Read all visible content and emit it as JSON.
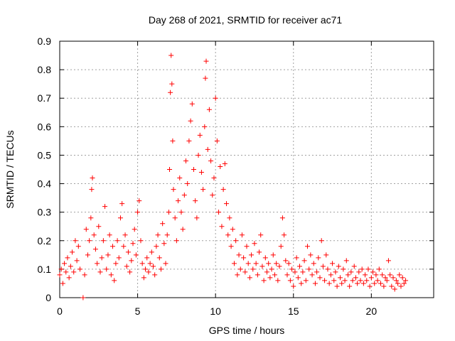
{
  "chart_data": {
    "type": "scatter",
    "title": "Day 268 of 2021, SRMTID for receiver ac71",
    "xlabel": "GPS time / hours",
    "ylabel": "SRMTID / TECUs",
    "xlim": [
      0,
      24
    ],
    "ylim": [
      0,
      0.9
    ],
    "xticks": [
      0,
      5,
      10,
      15,
      20
    ],
    "yticks": [
      0,
      0.1,
      0.2,
      0.3,
      0.4,
      0.5,
      0.6,
      0.7,
      0.8,
      0.9
    ],
    "xtick_labels": [
      "0",
      "5",
      "10",
      "15",
      "20"
    ],
    "ytick_labels": [
      "0",
      "0.1",
      "0.2",
      "0.3",
      "0.4",
      "0.5",
      "0.6",
      "0.7",
      "0.8",
      "0.9"
    ],
    "grid": true,
    "marker": "+",
    "color": "#ff0000",
    "series": [
      {
        "name": "SRMTID",
        "points": [
          [
            0.0,
            0.08
          ],
          [
            0.1,
            0.1
          ],
          [
            0.2,
            0.05
          ],
          [
            0.3,
            0.12
          ],
          [
            0.4,
            0.09
          ],
          [
            0.5,
            0.14
          ],
          [
            0.6,
            0.07
          ],
          [
            0.7,
            0.11
          ],
          [
            0.8,
            0.16
          ],
          [
            0.9,
            0.09
          ],
          [
            1.0,
            0.2
          ],
          [
            1.1,
            0.13
          ],
          [
            1.2,
            0.18
          ],
          [
            1.3,
            0.1
          ],
          [
            1.5,
            0.0
          ],
          [
            1.6,
            0.08
          ],
          [
            1.7,
            0.24
          ],
          [
            1.8,
            0.15
          ],
          [
            1.9,
            0.2
          ],
          [
            2.0,
            0.28
          ],
          [
            2.05,
            0.38
          ],
          [
            2.1,
            0.42
          ],
          [
            2.2,
            0.22
          ],
          [
            2.3,
            0.17
          ],
          [
            2.4,
            0.12
          ],
          [
            2.5,
            0.25
          ],
          [
            2.6,
            0.09
          ],
          [
            2.7,
            0.14
          ],
          [
            2.8,
            0.2
          ],
          [
            2.9,
            0.32
          ],
          [
            3.0,
            0.1
          ],
          [
            3.1,
            0.15
          ],
          [
            3.2,
            0.22
          ],
          [
            3.3,
            0.08
          ],
          [
            3.4,
            0.18
          ],
          [
            3.5,
            0.06
          ],
          [
            3.6,
            0.12
          ],
          [
            3.7,
            0.2
          ],
          [
            3.8,
            0.14
          ],
          [
            3.9,
            0.28
          ],
          [
            4.0,
            0.33
          ],
          [
            4.1,
            0.18
          ],
          [
            4.2,
            0.22
          ],
          [
            4.3,
            0.11
          ],
          [
            4.4,
            0.16
          ],
          [
            4.5,
            0.09
          ],
          [
            4.6,
            0.13
          ],
          [
            4.7,
            0.19
          ],
          [
            4.8,
            0.24
          ],
          [
            4.9,
            0.15
          ],
          [
            5.0,
            0.3
          ],
          [
            5.1,
            0.34
          ],
          [
            5.2,
            0.2
          ],
          [
            5.3,
            0.12
          ],
          [
            5.4,
            0.07
          ],
          [
            5.5,
            0.1
          ],
          [
            5.6,
            0.14
          ],
          [
            5.7,
            0.09
          ],
          [
            5.8,
            0.12
          ],
          [
            5.9,
            0.16
          ],
          [
            6.0,
            0.11
          ],
          [
            6.1,
            0.08
          ],
          [
            6.2,
            0.18
          ],
          [
            6.3,
            0.22
          ],
          [
            6.4,
            0.14
          ],
          [
            6.5,
            0.1
          ],
          [
            6.6,
            0.26
          ],
          [
            6.7,
            0.19
          ],
          [
            6.8,
            0.12
          ],
          [
            6.9,
            0.22
          ],
          [
            7.0,
            0.3
          ],
          [
            7.05,
            0.45
          ],
          [
            7.1,
            0.72
          ],
          [
            7.15,
            0.85
          ],
          [
            7.2,
            0.75
          ],
          [
            7.25,
            0.55
          ],
          [
            7.3,
            0.38
          ],
          [
            7.4,
            0.28
          ],
          [
            7.5,
            0.2
          ],
          [
            7.6,
            0.34
          ],
          [
            7.7,
            0.42
          ],
          [
            7.8,
            0.3
          ],
          [
            7.9,
            0.24
          ],
          [
            8.0,
            0.36
          ],
          [
            8.1,
            0.48
          ],
          [
            8.2,
            0.4
          ],
          [
            8.3,
            0.55
          ],
          [
            8.4,
            0.62
          ],
          [
            8.5,
            0.68
          ],
          [
            8.6,
            0.45
          ],
          [
            8.7,
            0.34
          ],
          [
            8.8,
            0.28
          ],
          [
            8.9,
            0.5
          ],
          [
            9.0,
            0.57
          ],
          [
            9.1,
            0.44
          ],
          [
            9.2,
            0.38
          ],
          [
            9.3,
            0.6
          ],
          [
            9.35,
            0.77
          ],
          [
            9.4,
            0.83
          ],
          [
            9.5,
            0.52
          ],
          [
            9.6,
            0.66
          ],
          [
            9.7,
            0.48
          ],
          [
            9.8,
            0.36
          ],
          [
            9.9,
            0.42
          ],
          [
            10.0,
            0.7
          ],
          [
            10.1,
            0.55
          ],
          [
            10.2,
            0.3
          ],
          [
            10.3,
            0.46
          ],
          [
            10.4,
            0.25
          ],
          [
            10.5,
            0.38
          ],
          [
            10.6,
            0.47
          ],
          [
            10.7,
            0.33
          ],
          [
            10.8,
            0.22
          ],
          [
            10.9,
            0.28
          ],
          [
            11.0,
            0.18
          ],
          [
            11.1,
            0.24
          ],
          [
            11.2,
            0.12
          ],
          [
            11.3,
            0.2
          ],
          [
            11.4,
            0.08
          ],
          [
            11.5,
            0.15
          ],
          [
            11.6,
            0.1
          ],
          [
            11.7,
            0.22
          ],
          [
            11.8,
            0.14
          ],
          [
            11.9,
            0.09
          ],
          [
            12.0,
            0.18
          ],
          [
            12.1,
            0.12
          ],
          [
            12.2,
            0.07
          ],
          [
            12.3,
            0.15
          ],
          [
            12.4,
            0.1
          ],
          [
            12.5,
            0.19
          ],
          [
            12.6,
            0.12
          ],
          [
            12.7,
            0.08
          ],
          [
            12.8,
            0.16
          ],
          [
            12.9,
            0.22
          ],
          [
            13.0,
            0.11
          ],
          [
            13.1,
            0.06
          ],
          [
            13.2,
            0.14
          ],
          [
            13.3,
            0.09
          ],
          [
            13.4,
            0.12
          ],
          [
            13.5,
            0.07
          ],
          [
            13.6,
            0.1
          ],
          [
            13.7,
            0.15
          ],
          [
            13.8,
            0.08
          ],
          [
            13.9,
            0.12
          ],
          [
            14.0,
            0.06
          ],
          [
            14.1,
            0.11
          ],
          [
            14.2,
            0.18
          ],
          [
            14.3,
            0.28
          ],
          [
            14.4,
            0.22
          ],
          [
            14.5,
            0.13
          ],
          [
            14.6,
            0.08
          ],
          [
            14.7,
            0.12
          ],
          [
            14.8,
            0.06
          ],
          [
            14.9,
            0.1
          ],
          [
            15.0,
            0.04
          ],
          [
            15.1,
            0.09
          ],
          [
            15.2,
            0.14
          ],
          [
            15.3,
            0.07
          ],
          [
            15.4,
            0.11
          ],
          [
            15.5,
            0.05
          ],
          [
            15.6,
            0.09
          ],
          [
            15.7,
            0.13
          ],
          [
            15.8,
            0.06
          ],
          [
            15.9,
            0.18
          ],
          [
            16.0,
            0.1
          ],
          [
            16.1,
            0.15
          ],
          [
            16.2,
            0.08
          ],
          [
            16.3,
            0.12
          ],
          [
            16.4,
            0.05
          ],
          [
            16.5,
            0.09
          ],
          [
            16.6,
            0.14
          ],
          [
            16.7,
            0.07
          ],
          [
            16.8,
            0.2
          ],
          [
            16.9,
            0.11
          ],
          [
            17.0,
            0.06
          ],
          [
            17.1,
            0.15
          ],
          [
            17.2,
            0.1
          ],
          [
            17.3,
            0.05
          ],
          [
            17.4,
            0.08
          ],
          [
            17.5,
            0.12
          ],
          [
            17.6,
            0.06
          ],
          [
            17.7,
            0.09
          ],
          [
            17.8,
            0.04
          ],
          [
            17.9,
            0.11
          ],
          [
            18.0,
            0.07
          ],
          [
            18.1,
            0.05
          ],
          [
            18.2,
            0.1
          ],
          [
            18.3,
            0.06
          ],
          [
            18.4,
            0.13
          ],
          [
            18.5,
            0.08
          ],
          [
            18.6,
            0.04
          ],
          [
            18.7,
            0.09
          ],
          [
            18.8,
            0.06
          ],
          [
            18.9,
            0.11
          ],
          [
            19.0,
            0.07
          ],
          [
            19.1,
            0.05
          ],
          [
            19.2,
            0.09
          ],
          [
            19.3,
            0.06
          ],
          [
            19.4,
            0.1
          ],
          [
            19.5,
            0.05
          ],
          [
            19.6,
            0.08
          ],
          [
            19.7,
            0.06
          ],
          [
            19.8,
            0.1
          ],
          [
            19.9,
            0.04
          ],
          [
            20.0,
            0.07
          ],
          [
            20.1,
            0.09
          ],
          [
            20.2,
            0.05
          ],
          [
            20.3,
            0.08
          ],
          [
            20.4,
            0.06
          ],
          [
            20.5,
            0.1
          ],
          [
            20.6,
            0.05
          ],
          [
            20.7,
            0.08
          ],
          [
            20.8,
            0.04
          ],
          [
            20.9,
            0.07
          ],
          [
            21.0,
            0.06
          ],
          [
            21.1,
            0.13
          ],
          [
            21.2,
            0.08
          ],
          [
            21.3,
            0.04
          ],
          [
            21.4,
            0.07
          ],
          [
            21.5,
            0.03
          ],
          [
            21.6,
            0.06
          ],
          [
            21.7,
            0.05
          ],
          [
            21.8,
            0.08
          ],
          [
            21.9,
            0.04
          ],
          [
            22.0,
            0.07
          ],
          [
            22.1,
            0.05
          ],
          [
            22.2,
            0.06
          ]
        ]
      }
    ]
  }
}
